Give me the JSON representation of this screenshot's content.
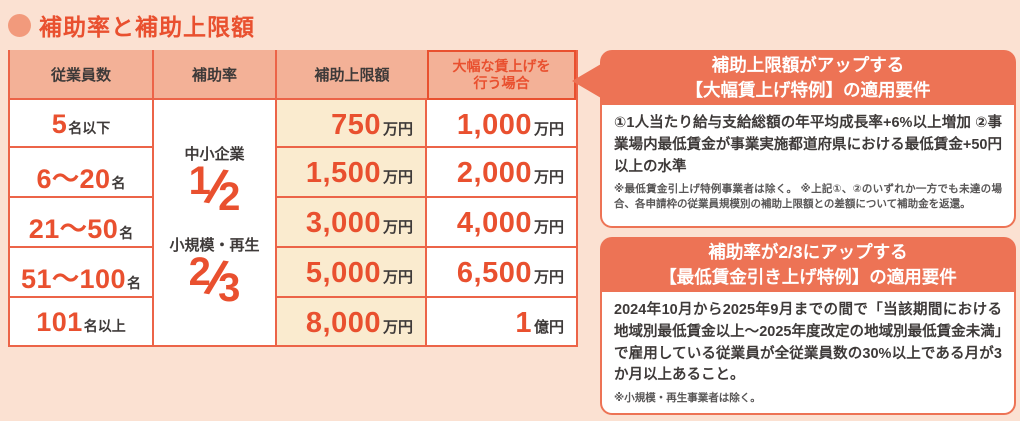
{
  "page": {
    "title": "補助率と補助上限額",
    "colors": {
      "accent": "#e9502f",
      "table_line": "#ec6448",
      "panel_orange": "#ed7355",
      "table_header_bg": "#f3b197",
      "cap_column_bg": "#faebcf",
      "page_bg": "#fbe1d2",
      "dark_text": "#3e3a39"
    }
  },
  "table": {
    "headers": {
      "employees": "従業員数",
      "rate": "補助率",
      "cap": "補助上限額",
      "raise_line1": "大幅な賃上げを",
      "raise_line2": "行う場合"
    },
    "rate": {
      "group1_label": "中小企業",
      "group1_num": "1",
      "group1_slash": "/",
      "group1_den": "2",
      "group2_label": "小規模・再生",
      "group2_num": "2",
      "group2_slash": "/",
      "group2_den": "3"
    },
    "rows": [
      {
        "emp_num": "5",
        "emp_unit": "名以下",
        "cap_num": "750",
        "cap_unit": "万円",
        "raise_num": "1,000",
        "raise_unit": "万円"
      },
      {
        "emp_num": "6〜20",
        "emp_unit": "名",
        "cap_num": "1,500",
        "cap_unit": "万円",
        "raise_num": "2,000",
        "raise_unit": "万円"
      },
      {
        "emp_num": "21〜50",
        "emp_unit": "名",
        "cap_num": "3,000",
        "cap_unit": "万円",
        "raise_num": "4,000",
        "raise_unit": "万円"
      },
      {
        "emp_num": "51〜100",
        "emp_unit": "名",
        "cap_num": "5,000",
        "cap_unit": "万円",
        "raise_num": "6,500",
        "raise_unit": "万円"
      },
      {
        "emp_num": "101",
        "emp_unit": "名以上",
        "cap_num": "8,000",
        "cap_unit": "万円",
        "raise_num": "1",
        "raise_unit": "億円"
      }
    ]
  },
  "panels": [
    {
      "title_line1": "補助上限額がアップする",
      "title_line2": "【大幅賃上げ特例】の適用要件",
      "body": "①1人当たり給与支給総額の年平均成長率+6%以上増加 ②事業場内最低賃金が事業実施都道府県における最低賃金+50円以上の水準",
      "note": "※最低賃金引上げ特例事業者は除く。 ※上記①、②のいずれか一方でも未達の場合、各申請枠の従業員規模別の補助上限額との差額について補助金を返還。"
    },
    {
      "title_line1": "補助率が2/3にアップする",
      "title_line2": "【最低賃金引き上げ特例】の適用要件",
      "body": "2024年10月から2025年9月までの間で「当該期間における地域別最低賃金以上〜2025年度改定の地域別最低賃金未満」で雇用している従業員が全従業員数の30%以上である月が3か月以上あること。",
      "note": "※小規模・再生事業者は除く。"
    }
  ]
}
